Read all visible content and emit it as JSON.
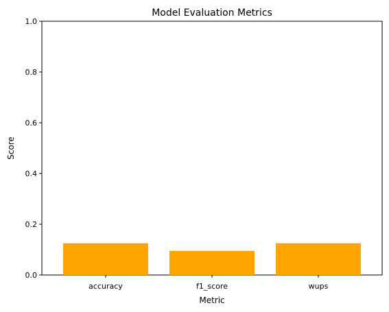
{
  "chart_data": {
    "type": "bar",
    "title": "Model Evaluation Metrics",
    "xlabel": "Metric",
    "ylabel": "Score",
    "categories": [
      "accuracy",
      "f1_score",
      "wups"
    ],
    "values": [
      0.125,
      0.095,
      0.125
    ],
    "ylim": [
      0,
      1
    ],
    "yticks": [
      "0.0",
      "0.2",
      "0.4",
      "0.6",
      "0.8",
      "1.0"
    ],
    "bar_color": "#ffa500",
    "grid": false,
    "legend": "none"
  }
}
